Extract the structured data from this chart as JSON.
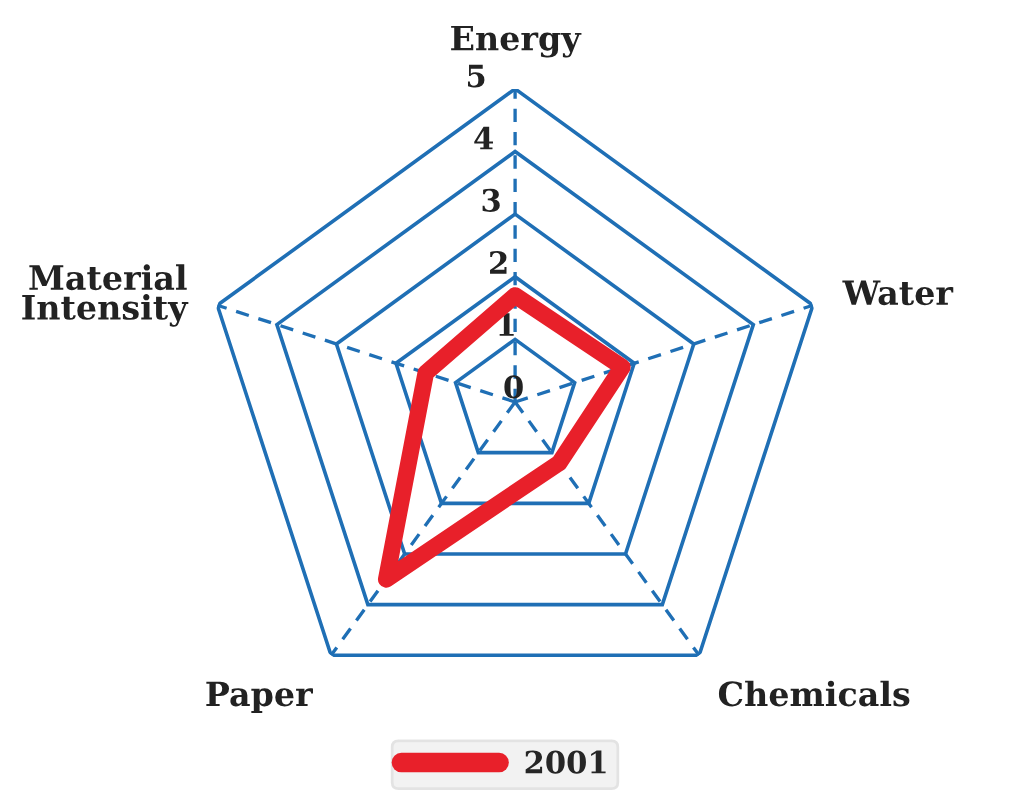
{
  "chart_data": {
    "type": "radar",
    "categories": [
      "Energy",
      "Water",
      "Chemicals",
      "Paper",
      "Material\nIntensity"
    ],
    "series": [
      {
        "name": "2001",
        "color": "#e8202a",
        "values": [
          1.7,
          1.8,
          1.2,
          3.5,
          1.5
        ]
      }
    ],
    "ylim": [
      0,
      5
    ],
    "yticks": [
      0,
      1,
      2,
      3,
      4,
      5
    ],
    "grid": true,
    "legend": "bottom"
  }
}
